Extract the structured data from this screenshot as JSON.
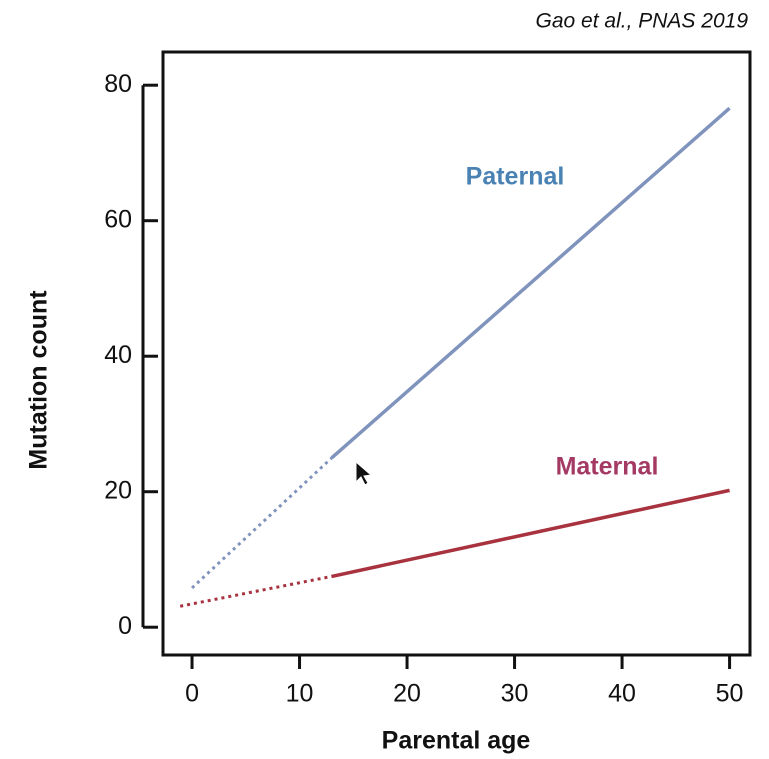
{
  "chart_data": {
    "type": "line",
    "citation": "Gao et al., PNAS 2019",
    "x_label": "Parental age",
    "y_label": "Mutation count",
    "xlim": [
      -2.7,
      51.9
    ],
    "ylim": [
      -4.1,
      84.9
    ],
    "xticks": [
      0,
      10,
      20,
      30,
      40,
      50
    ],
    "yticks": [
      0,
      20,
      40,
      60,
      80
    ],
    "series": [
      {
        "name": "Paternal",
        "color": "#7f93bd",
        "label_color": "#4a82b4",
        "x": [
          0,
          13,
          50
        ],
        "values": [
          5.8,
          25,
          76.6
        ],
        "segment_styles": [
          "dotted",
          "solid"
        ]
      },
      {
        "name": "Maternal",
        "color": "#a8333f",
        "label_color": "#a43a63",
        "x": [
          -1.1,
          13,
          50
        ],
        "values": [
          3.1,
          7.5,
          20.2
        ],
        "segment_styles": [
          "dotted",
          "solid"
        ]
      }
    ]
  }
}
